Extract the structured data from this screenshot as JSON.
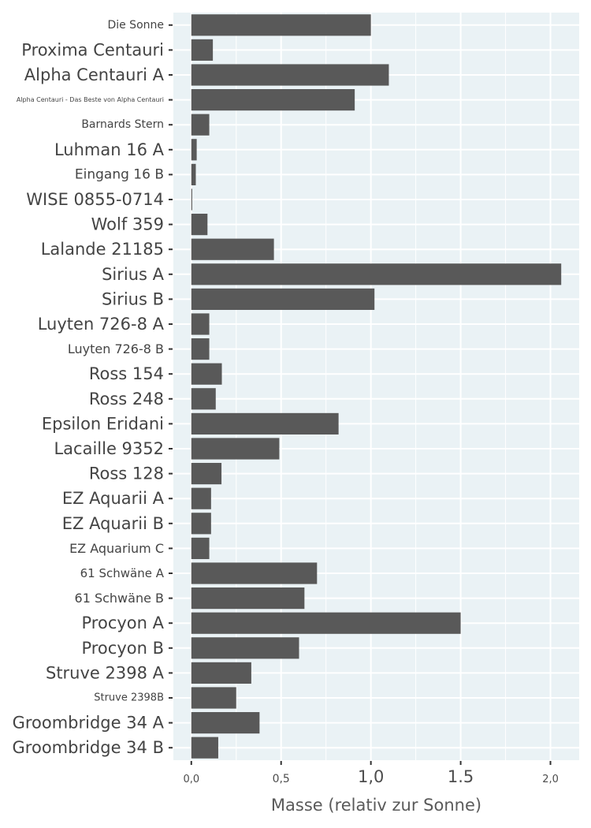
{
  "chart_data": {
    "type": "bar",
    "orientation": "horizontal",
    "categories": [
      "Die Sonne",
      "Proxima Centauri",
      "Alpha Centauri A",
      "Alpha Centauri - Das Beste von Alpha Centauri",
      "Barnards Stern",
      "Luhman 16 A",
      "Eingang 16 B",
      "WISE 0855-0714",
      "Wolf 359",
      "Lalande 21185",
      "Sirius A",
      "Sirius B",
      "Luyten 726-8 A",
      "Luyten 726-8 B",
      "Ross 154",
      "Ross 248",
      "Epsilon Eridani",
      "Lacaille 9352",
      "Ross 128",
      "EZ Aquarii A",
      "EZ Aquarii B",
      "EZ Aquarium C",
      "61 Schwäne A",
      "61 Schwäne B",
      "Procyon A",
      "Procyon B",
      "Struve 2398 A",
      "Struve 2398B",
      "Groombridge 34 A",
      "Groombridge 34 B"
    ],
    "values": [
      1.0,
      0.12,
      1.1,
      0.91,
      0.1,
      0.03,
      0.025,
      0.005,
      0.09,
      0.46,
      2.06,
      1.02,
      0.1,
      0.1,
      0.17,
      0.136,
      0.82,
      0.49,
      0.168,
      0.11,
      0.11,
      0.1,
      0.7,
      0.63,
      1.5,
      0.6,
      0.334,
      0.25,
      0.38,
      0.15
    ],
    "title": "",
    "xlabel": "Masse (relativ zur Sonne)",
    "ylabel": "",
    "xlim": [
      -0.1,
      2.16
    ],
    "x_ticks": [
      {
        "value": 0.0,
        "label": "0,0"
      },
      {
        "value": 0.5,
        "label": "0,5"
      },
      {
        "value": 1.0,
        "label": "1,0"
      },
      {
        "value": 1.5,
        "label": "1.5"
      },
      {
        "value": 2.0,
        "label": "2,0"
      }
    ],
    "grid": true,
    "colors": {
      "bar": "#595959",
      "panel_background": "#eaf2f5",
      "grid_line": "#ffffff"
    }
  }
}
